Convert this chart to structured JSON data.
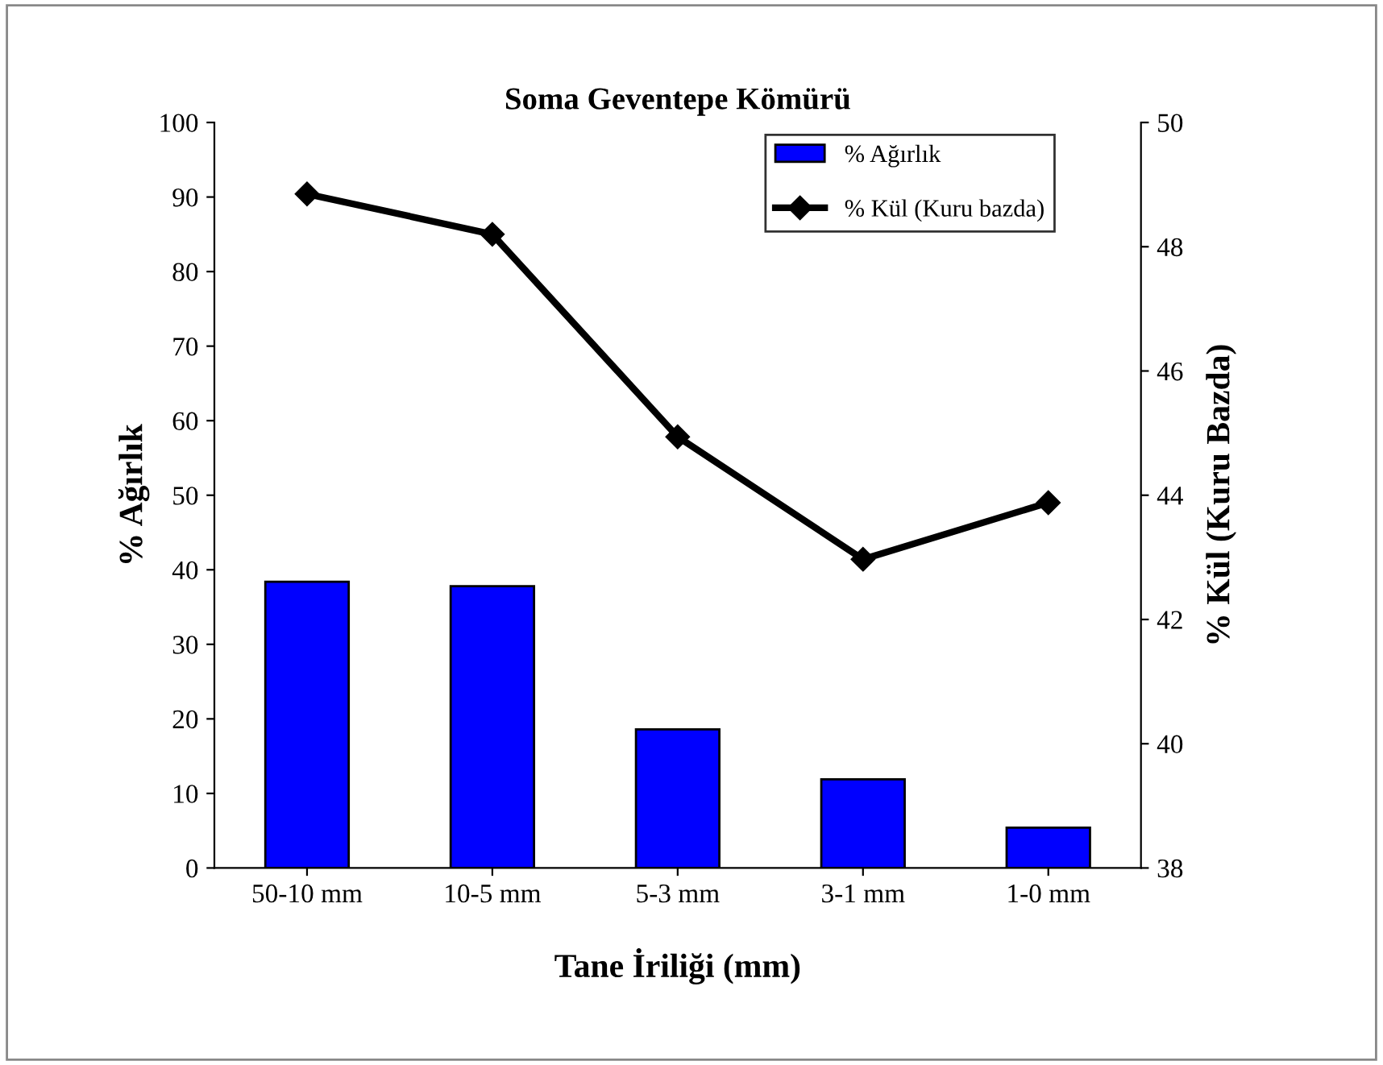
{
  "chart_data": {
    "type": "bar",
    "title": "Soma Geventepe Kömürü",
    "xlabel": "Tane İriliği (mm)",
    "ylabel": "% Ağırlık",
    "y2label": "% Kül (Kuru Bazda)",
    "categories": [
      "50-10 mm",
      "10-5 mm",
      "5-3 mm",
      "3-1 mm",
      "1-0 mm"
    ],
    "series": [
      {
        "name": "% Ağırlık",
        "color": "#0000ff",
        "values": [
          38.4,
          37.8,
          18.6,
          11.9,
          5.4
        ]
      },
      {
        "name": "% Kül (Kuru bazda)",
        "type": "line",
        "axis": "y2",
        "color": "#000000",
        "marker": "diamond",
        "line_style": "solid",
        "values": [
          48.85,
          48.2,
          44.94,
          42.97,
          43.88
        ]
      }
    ],
    "ylim": [
      0,
      100
    ],
    "yticks": [
      0,
      10,
      20,
      30,
      40,
      50,
      60,
      70,
      80,
      90,
      100
    ],
    "y2lim": [
      38,
      50
    ],
    "y2ticks": [
      38,
      40,
      42,
      44,
      46,
      48,
      50
    ],
    "grid": false,
    "legend": "top right"
  }
}
